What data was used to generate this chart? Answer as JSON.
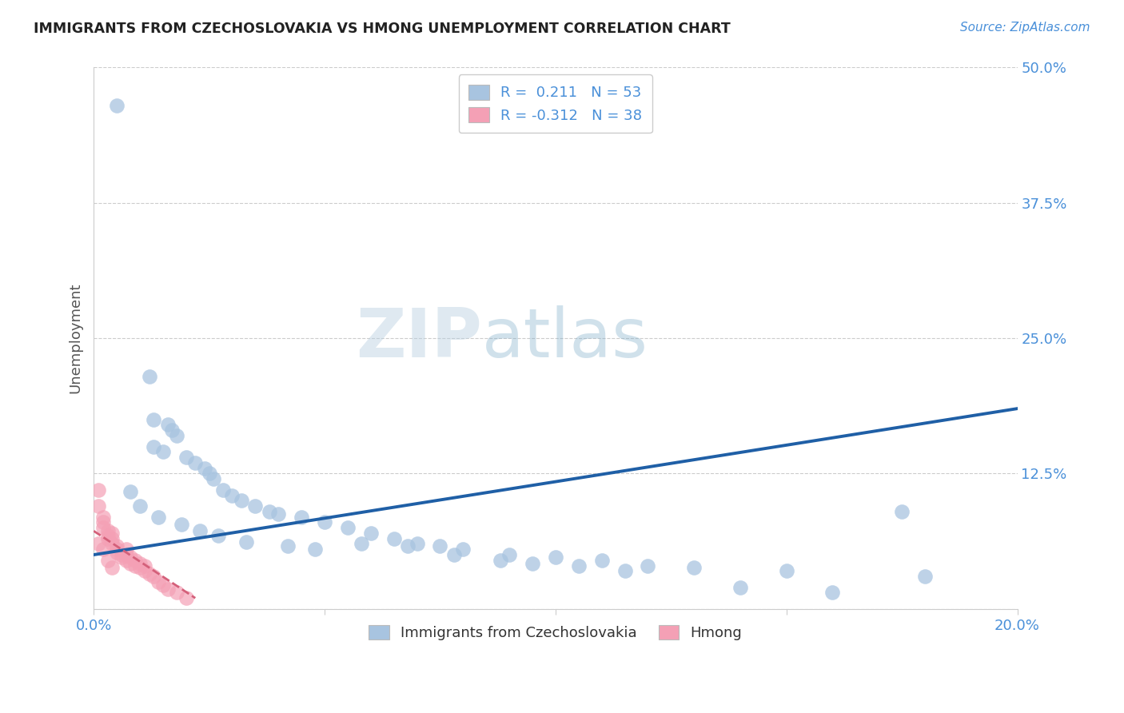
{
  "title": "IMMIGRANTS FROM CZECHOSLOVAKIA VS HMONG UNEMPLOYMENT CORRELATION CHART",
  "source": "Source: ZipAtlas.com",
  "ylabel_label": "Unemployment",
  "xlim": [
    0.0,
    0.2
  ],
  "ylim": [
    0.0,
    0.5
  ],
  "blue_color": "#a8c4e0",
  "blue_line_color": "#1f5fa6",
  "pink_color": "#f4a0b5",
  "pink_line_color": "#d4607a",
  "background_color": "#ffffff",
  "grid_color": "#cccccc",
  "blue_scatter_x": [
    0.005,
    0.012,
    0.013,
    0.016,
    0.017,
    0.018,
    0.013,
    0.015,
    0.02,
    0.022,
    0.024,
    0.025,
    0.026,
    0.028,
    0.03,
    0.032,
    0.035,
    0.038,
    0.04,
    0.045,
    0.05,
    0.055,
    0.06,
    0.065,
    0.07,
    0.075,
    0.08,
    0.09,
    0.1,
    0.11,
    0.12,
    0.13,
    0.15,
    0.18,
    0.008,
    0.01,
    0.014,
    0.019,
    0.023,
    0.027,
    0.033,
    0.042,
    0.048,
    0.058,
    0.068,
    0.078,
    0.088,
    0.095,
    0.105,
    0.115,
    0.14,
    0.16,
    0.175
  ],
  "blue_scatter_y": [
    0.465,
    0.215,
    0.175,
    0.17,
    0.165,
    0.16,
    0.15,
    0.145,
    0.14,
    0.135,
    0.13,
    0.125,
    0.12,
    0.11,
    0.105,
    0.1,
    0.095,
    0.09,
    0.088,
    0.085,
    0.08,
    0.075,
    0.07,
    0.065,
    0.06,
    0.058,
    0.055,
    0.05,
    0.048,
    0.045,
    0.04,
    0.038,
    0.035,
    0.03,
    0.108,
    0.095,
    0.085,
    0.078,
    0.072,
    0.068,
    0.062,
    0.058,
    0.055,
    0.06,
    0.058,
    0.05,
    0.045,
    0.042,
    0.04,
    0.035,
    0.02,
    0.015,
    0.09
  ],
  "pink_scatter_x": [
    0.001,
    0.001,
    0.002,
    0.002,
    0.002,
    0.003,
    0.003,
    0.003,
    0.004,
    0.004,
    0.004,
    0.005,
    0.005,
    0.005,
    0.006,
    0.006,
    0.007,
    0.007,
    0.007,
    0.008,
    0.008,
    0.009,
    0.009,
    0.01,
    0.01,
    0.011,
    0.011,
    0.012,
    0.013,
    0.014,
    0.015,
    0.016,
    0.018,
    0.02,
    0.001,
    0.002,
    0.003,
    0.004
  ],
  "pink_scatter_y": [
    0.11,
    0.095,
    0.085,
    0.08,
    0.075,
    0.072,
    0.068,
    0.065,
    0.07,
    0.065,
    0.06,
    0.058,
    0.055,
    0.052,
    0.05,
    0.048,
    0.055,
    0.05,
    0.045,
    0.048,
    0.042,
    0.045,
    0.04,
    0.042,
    0.038,
    0.04,
    0.035,
    0.032,
    0.03,
    0.025,
    0.022,
    0.018,
    0.015,
    0.01,
    0.06,
    0.055,
    0.045,
    0.038
  ],
  "blue_line_x": [
    0.0,
    0.2
  ],
  "blue_line_y": [
    0.05,
    0.185
  ],
  "pink_line_x": [
    0.0,
    0.022
  ],
  "pink_line_y": [
    0.072,
    0.01
  ],
  "xtick_positions": [
    0.0,
    0.05,
    0.1,
    0.15,
    0.2
  ],
  "xtick_labels": [
    "0.0%",
    "",
    "",
    "",
    "20.0%"
  ],
  "ytick_positions": [
    0.0,
    0.125,
    0.25,
    0.375,
    0.5
  ],
  "ytick_labels": [
    "",
    "12.5%",
    "25.0%",
    "37.5%",
    "50.0%"
  ]
}
